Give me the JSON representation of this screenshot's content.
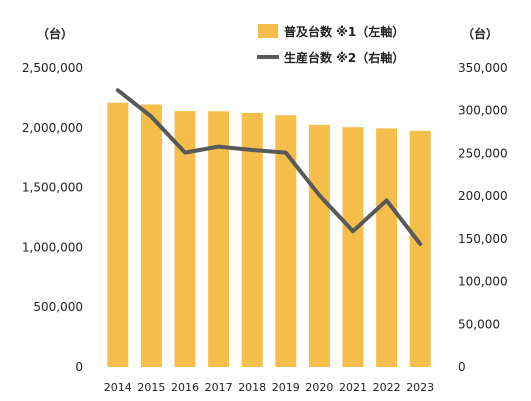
{
  "chart_data": {
    "type": "bar",
    "categories": [
      "2014",
      "2015",
      "2016",
      "2017",
      "2018",
      "2019",
      "2020",
      "2021",
      "2022",
      "2023"
    ],
    "series": [
      {
        "name": "普及台数 ※1（左軸）",
        "type": "bar",
        "axis": "left",
        "color": "#F5BE4B",
        "values": [
          2210000,
          2195000,
          2140000,
          2138000,
          2125000,
          2105000,
          2025000,
          2005000,
          1995000,
          1975000
        ]
      },
      {
        "name": "生産台数 ※2（右軸）",
        "type": "line",
        "axis": "right",
        "color": "#595959",
        "values": [
          324000,
          293000,
          251000,
          258000,
          254000,
          251000,
          201000,
          159000,
          195000,
          144000
        ]
      }
    ],
    "left_axis": {
      "unit": "（台）",
      "ylim": [
        0,
        2500000
      ],
      "ticks": [
        "0",
        "500,000",
        "1,000,000",
        "1,500,000",
        "2,000,000",
        "2,500,000"
      ]
    },
    "right_axis": {
      "unit": "（台）",
      "ylim": [
        0,
        350000
      ],
      "ticks": [
        "0",
        "50,000",
        "100,000",
        "150,000",
        "200,000",
        "250,000",
        "300,000",
        "350,000"
      ]
    },
    "legend_position": "top-right",
    "grid": false
  }
}
